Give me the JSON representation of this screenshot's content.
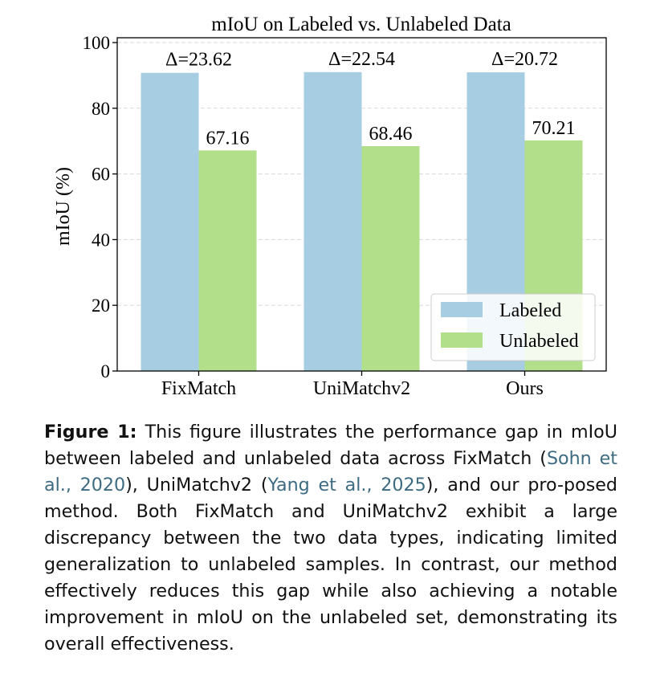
{
  "chart_data": {
    "type": "bar",
    "title": "mIoU on Labeled vs. Unlabeled Data",
    "xlabel": "",
    "ylabel": "mIoU (%)",
    "ylim": [
      0,
      100
    ],
    "yticks": [
      "0",
      "20",
      "40",
      "60",
      "80",
      "100"
    ],
    "categories": [
      "FixMatch",
      "UniMatchv2",
      "Ours"
    ],
    "series": [
      {
        "name": "Labeled",
        "color": "#a6cde2",
        "values": [
          90.78,
          91.0,
          90.93
        ]
      },
      {
        "name": "Unlabeled",
        "color": "#b2df8a",
        "values": [
          67.16,
          68.46,
          70.21
        ],
        "labels": [
          "67.16",
          "68.46",
          "70.21"
        ]
      }
    ],
    "annotations": [
      "Δ=23.62",
      "Δ=22.54",
      "Δ=20.72"
    ],
    "grid": true,
    "legend_position": "lower-right"
  },
  "caption": {
    "label": "Figure 1:",
    "p1": " This figure illustrates the performance gap in mIoU between labeled and unlabeled data across FixMatch (",
    "cite1": "Sohn et al., 2020",
    "p2": "), UniMatchv2 (",
    "cite2": "Yang et al., 2025",
    "p3": "), and our pro-posed method. Both FixMatch and UniMatchv2 exhibit a large discrepancy between the two data types, indicating limited generalization to unlabeled samples. In contrast, our method effectively reduces this gap while also achieving a notable improvement in mIoU on the unlabeled set, demonstrating its overall effectiveness."
  }
}
